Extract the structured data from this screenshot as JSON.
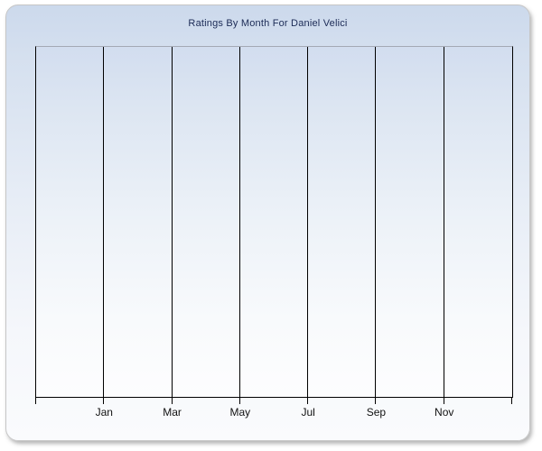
{
  "chart": {
    "title": "Ratings By Month For Daniel Velici"
  },
  "chart_data": {
    "type": "line",
    "title": "Ratings By Month For Daniel Velici",
    "categories": [
      "Jan",
      "Mar",
      "May",
      "Jul",
      "Sep",
      "Nov"
    ],
    "series": [],
    "x_intervals": 7,
    "xlabel": "",
    "ylabel": "",
    "y_tick_labels": [],
    "grid": "vertical",
    "legend": "none",
    "plot_empty": true
  },
  "colors": {
    "title_text": "#1b2a55",
    "axis_line": "#000000",
    "gridline": "#000000",
    "plot_border_top": "#a3a9b4",
    "card_border": "#c6c6c6",
    "card_bg_top": "#ccd9ec",
    "card_bg_bottom": "#fafbfd",
    "plot_bg_top": "#d2ddef",
    "plot_bg_bottom": "#fdfdfe",
    "label_text": "#111111"
  }
}
